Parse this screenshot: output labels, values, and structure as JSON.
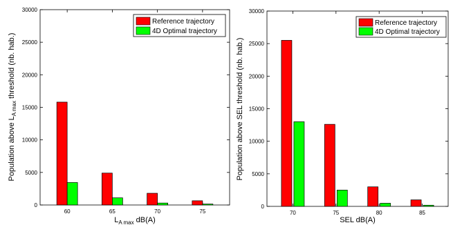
{
  "chart_data": [
    {
      "type": "bar",
      "categories": [
        "60",
        "65",
        "70",
        "75"
      ],
      "series": [
        {
          "name": "Reference trajectory",
          "color": "#ff0000",
          "values": [
            15800,
            4900,
            1800,
            650
          ]
        },
        {
          "name": "4D Optimal trajectory",
          "color": "#00ff00",
          "values": [
            3450,
            1100,
            300,
            150
          ]
        }
      ],
      "title": "",
      "xlabel_main": "L",
      "xlabel_sub": "A max",
      "xlabel_rest": " dB(A)",
      "ylabel_pre": "Population above L",
      "ylabel_sub": "A max",
      "ylabel_post": " threshold (nb. hab.)",
      "ylim": [
        0,
        30000
      ],
      "yticks": [
        "0",
        "5000",
        "10000",
        "15000",
        "20000",
        "25000",
        "30000"
      ],
      "legend_position": "top-right",
      "grid": false
    },
    {
      "type": "bar",
      "categories": [
        "70",
        "75",
        "80",
        "85"
      ],
      "series": [
        {
          "name": "Reference trajectory",
          "color": "#ff0000",
          "values": [
            25500,
            12600,
            3000,
            1000
          ]
        },
        {
          "name": "4D Optimal trajectory",
          "color": "#00ff00",
          "values": [
            13000,
            2500,
            480,
            180
          ]
        }
      ],
      "title": "",
      "xlabel": "SEL dB(A)",
      "ylabel": "Population above SEL threshold (nb. hab.)",
      "ylim": [
        0,
        30000
      ],
      "yticks": [
        "0",
        "5000",
        "10000",
        "15000",
        "20000",
        "25000",
        "30000"
      ],
      "legend_position": "top-right",
      "grid": false
    }
  ]
}
